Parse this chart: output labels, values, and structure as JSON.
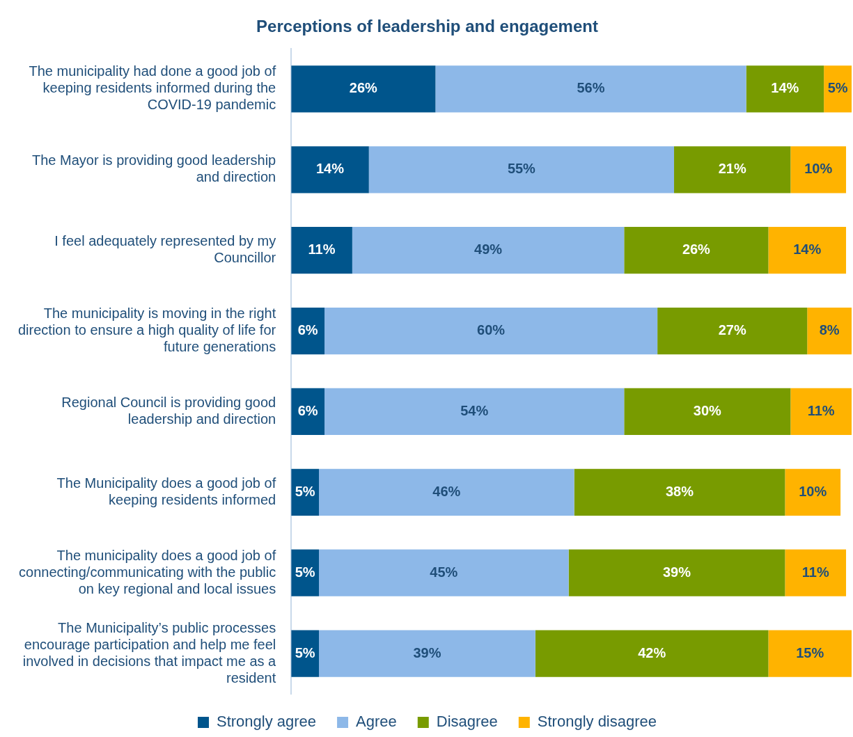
{
  "chart_data": {
    "type": "bar",
    "orientation": "horizontal",
    "stacked": true,
    "title": "Perceptions of leadership and engagement",
    "categories": [
      "The municipality had done a good job of keeping residents informed during the COVID-19 pandemic",
      "The Mayor is providing good leadership and direction",
      "I feel adequately represented by my Councillor",
      "The municipality is moving in the right direction to ensure a high quality of life for future generations",
      "Regional Council is providing good leadership and direction",
      "The Municipality does a good job of keeping residents informed",
      "The municipality does a good job of connecting/communicating with the public on key regional and local issues",
      "The Municipality’s public processes encourage participation and help me feel involved in decisions that impact me as a resident"
    ],
    "series": [
      {
        "name": "Strongly agree",
        "color": "#00558c",
        "values": [
          26,
          14,
          11,
          6,
          6,
          5,
          5,
          5
        ],
        "value_labels": [
          "26%",
          "14%",
          "11%",
          "6%",
          "6%",
          "5%",
          "5%",
          "5%"
        ]
      },
      {
        "name": "Agree",
        "color": "#8db8e8",
        "values": [
          56,
          55,
          49,
          60,
          54,
          46,
          45,
          39
        ],
        "value_labels": [
          "56%",
          "55%",
          "49%",
          "60%",
          "54%",
          "46%",
          "45%",
          "39%"
        ]
      },
      {
        "name": "Disagree",
        "color": "#789b00",
        "values": [
          14,
          21,
          26,
          27,
          30,
          38,
          39,
          42
        ],
        "value_labels": [
          "14%",
          "21%",
          "26%",
          "27%",
          "30%",
          "38%",
          "39%",
          "42%"
        ]
      },
      {
        "name": "Strongly disagree",
        "color": "#ffb300",
        "values": [
          5,
          10,
          14,
          8,
          11,
          10,
          11,
          15
        ],
        "value_labels": [
          "5%",
          "10%",
          "14%",
          "8%",
          "11%",
          "10%",
          "11%",
          "15%"
        ]
      }
    ],
    "legend": "bottom"
  }
}
